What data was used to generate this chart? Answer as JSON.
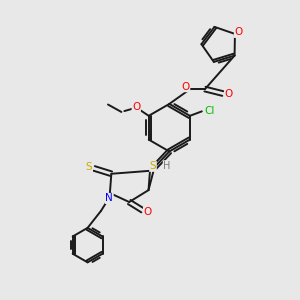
{
  "background_color": "#e8e8e8",
  "bond_color": "#1a1a1a",
  "atom_colors": {
    "O": "#ff0000",
    "N": "#0000ff",
    "S": "#ccaa00",
    "Cl": "#00bb00",
    "H": "#777777",
    "C": "#1a1a1a"
  },
  "figsize": [
    3.0,
    3.0
  ],
  "dpi": 100
}
